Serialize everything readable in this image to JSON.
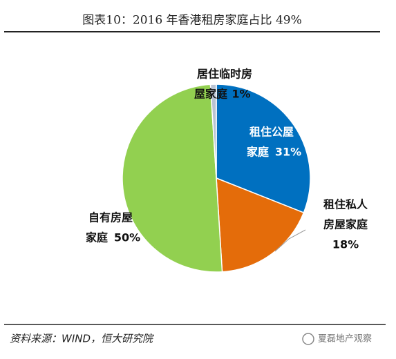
{
  "chart_data": {
    "type": "pie",
    "title": "图表10：2016 年香港租房家庭占比 49%",
    "categories": [
      [
        "租住公屋",
        "家庭"
      ],
      [
        "租住私人",
        "房屋家庭"
      ],
      [
        "自有房屋",
        "家庭"
      ],
      [
        "居住临时房",
        "屋家庭"
      ]
    ],
    "values": [
      31,
      18,
      50,
      1
    ],
    "value_labels": [
      "31%",
      "18%",
      "50%",
      "1%"
    ],
    "colors": [
      "#0070c0",
      "#e46c0a",
      "#92d050",
      "#b9c3d3"
    ],
    "source": "资料来源：WIND，恒大研究院",
    "watermark": "夏磊地产观察"
  }
}
